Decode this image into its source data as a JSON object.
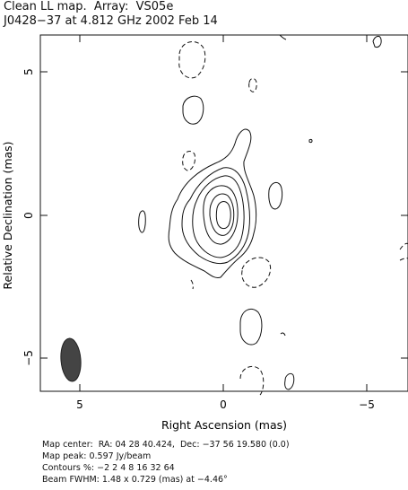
{
  "header": {
    "title": "Clean LL map.  Array:  VS05e",
    "subtitle": "J0428−37 at 4.812 GHz 2002 Feb 14"
  },
  "axes": {
    "xlabel": "Right Ascension  (mas)",
    "ylabel": "Relative Declination  (mas)",
    "xticks": [
      "5",
      "0",
      "−5"
    ],
    "yticks": [
      "5",
      "0",
      "−5"
    ]
  },
  "footer": {
    "map_center": "Map center:  RA: 04 28 40.424,  Dec: −37 56 19.580 (0.0)",
    "map_peak": "Map peak: 0.597 Jy/beam",
    "contours": "Contours %: −2 2 4 8 16 32 64",
    "beam": "Beam FWHM: 1.48 x 0.729 (mas) at −4.46°"
  },
  "style": {
    "contour_color": "#111111",
    "beam_fill": "#444444"
  }
}
